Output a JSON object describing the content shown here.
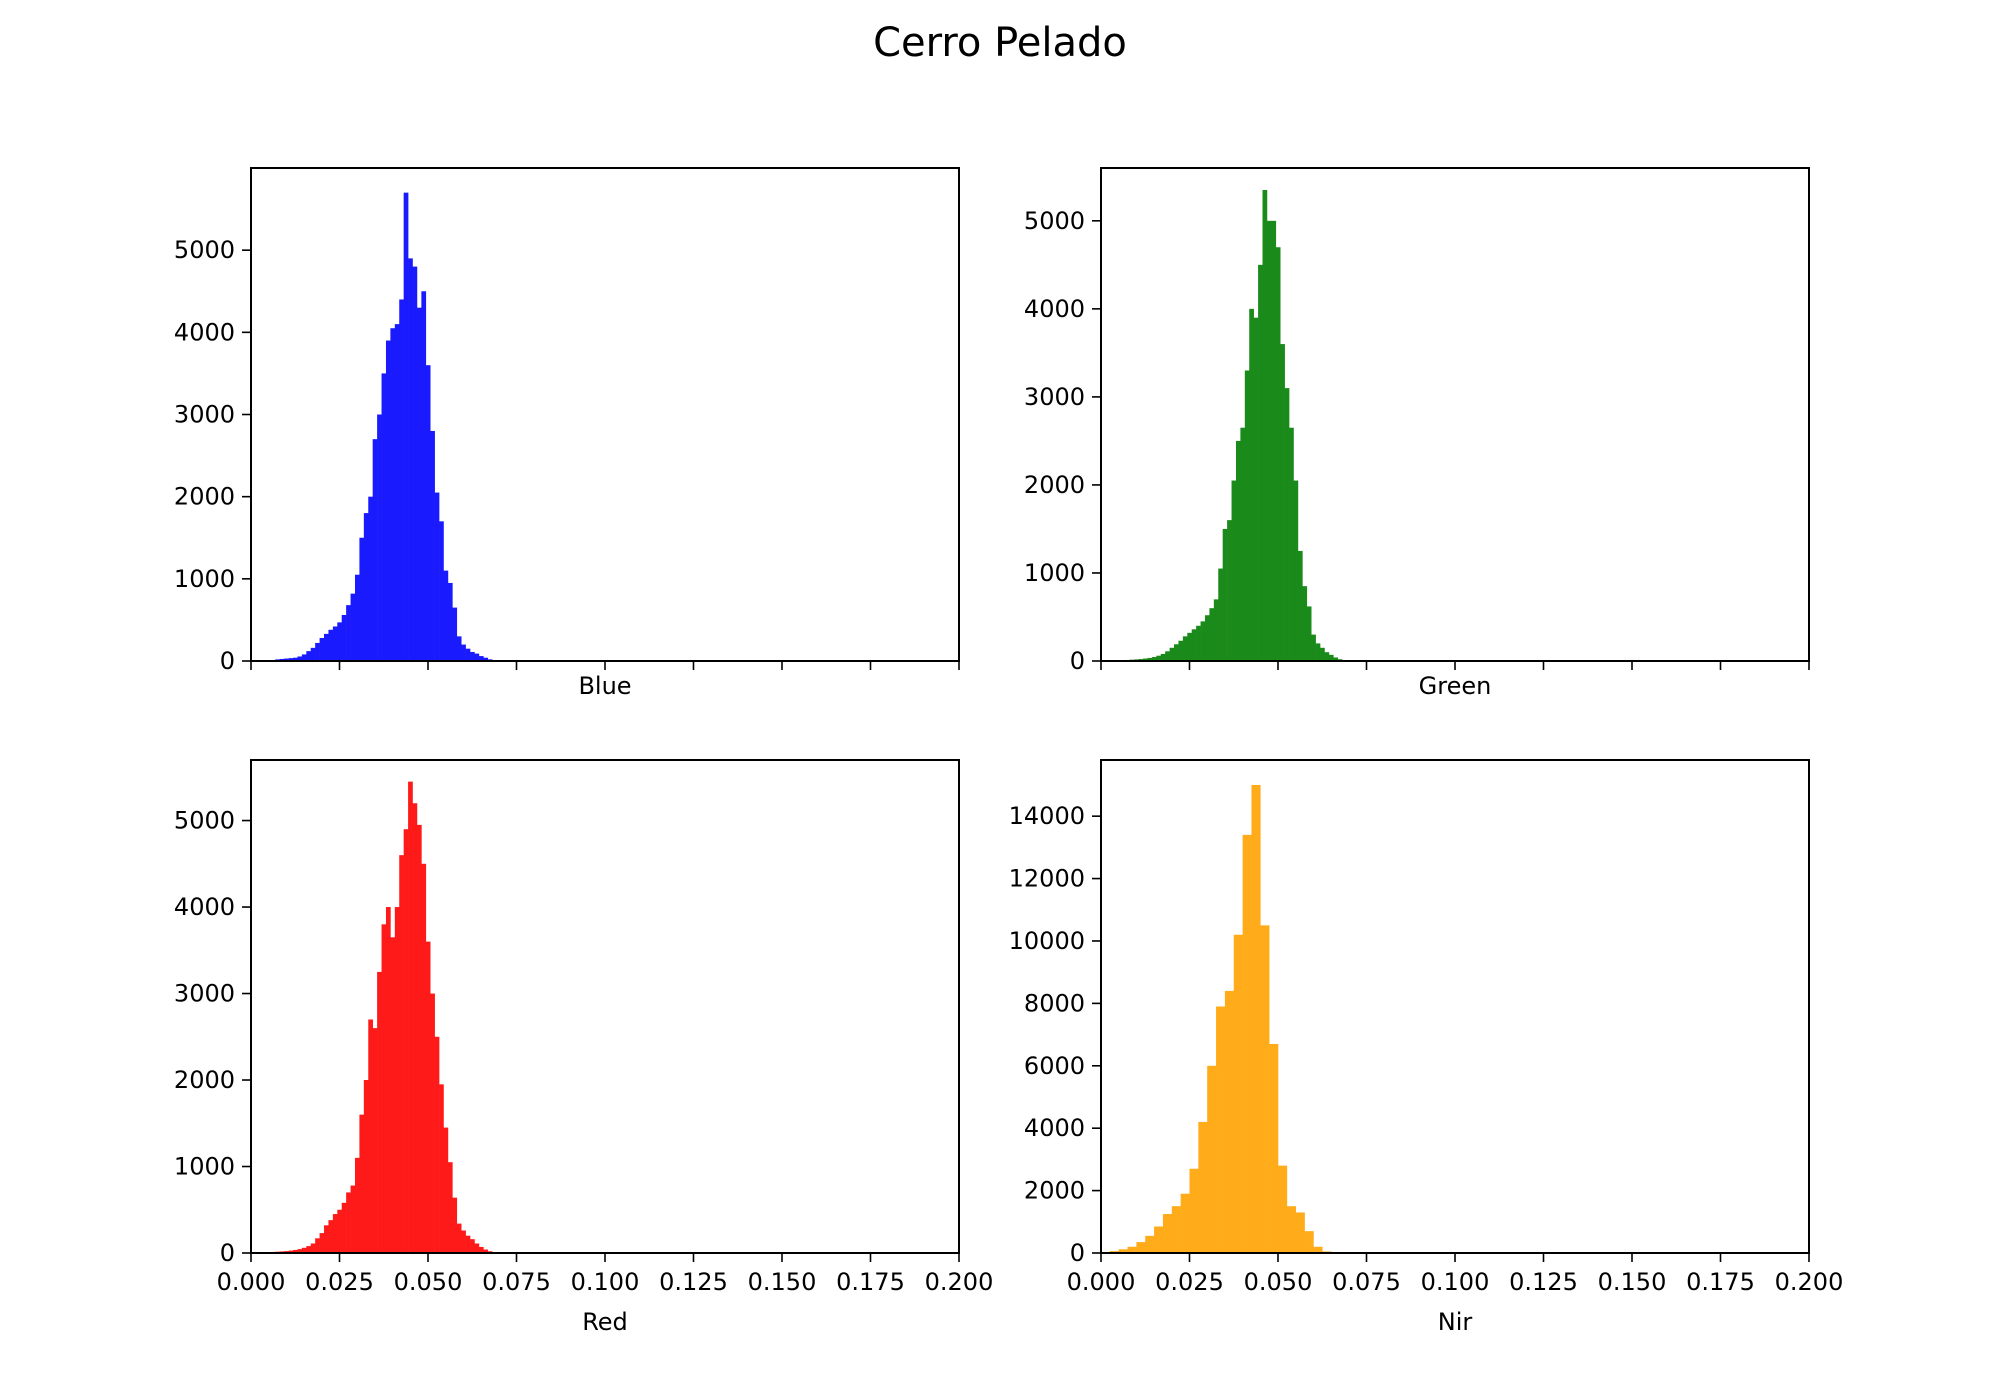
{
  "figure": {
    "title": "Cerro Pelado"
  },
  "chart_data": [
    {
      "type": "bar",
      "panel": "top-left",
      "title": "",
      "xlabel": "Blue",
      "ylabel": "",
      "color": "#1a1aff",
      "xlim": [
        0.0,
        0.2
      ],
      "ylim": [
        0,
        6000
      ],
      "xticks": [
        "",
        "",
        "",
        "",
        "",
        "",
        "",
        "",
        ""
      ],
      "yticks": [
        "0",
        "1000",
        "2000",
        "3000",
        "4000",
        "5000"
      ],
      "grid": false,
      "bin_width": 0.00125,
      "x": [
        0.0075,
        0.00875,
        0.01,
        0.01125,
        0.0125,
        0.01375,
        0.015,
        0.01625,
        0.0175,
        0.01875,
        0.02,
        0.02125,
        0.0225,
        0.02375,
        0.025,
        0.02625,
        0.0275,
        0.02875,
        0.03,
        0.03125,
        0.0325,
        0.03375,
        0.035,
        0.03625,
        0.0375,
        0.03875,
        0.04,
        0.04125,
        0.0425,
        0.04375,
        0.045,
        0.04625,
        0.0475,
        0.04875,
        0.05,
        0.05125,
        0.0525,
        0.05375,
        0.055,
        0.05625,
        0.0575,
        0.05875,
        0.06,
        0.06125,
        0.0625,
        0.06375,
        0.065,
        0.06625,
        0.0675,
        0.06875
      ],
      "values": [
        20,
        25,
        30,
        35,
        40,
        55,
        80,
        120,
        160,
        220,
        280,
        330,
        380,
        420,
        470,
        560,
        680,
        820,
        1050,
        1500,
        1800,
        2000,
        2700,
        3000,
        3500,
        3900,
        4050,
        4100,
        4400,
        5700,
        4900,
        4800,
        4300,
        4500,
        3600,
        2800,
        2050,
        1700,
        1100,
        950,
        650,
        300,
        200,
        150,
        110,
        90,
        60,
        40,
        20,
        10
      ]
    },
    {
      "type": "bar",
      "panel": "top-right",
      "title": "",
      "xlabel": "Green",
      "ylabel": "",
      "color": "#1a8a1a",
      "xlim": [
        0.0,
        0.2
      ],
      "ylim": [
        0,
        5600
      ],
      "xticks": [
        "",
        "",
        "",
        "",
        "",
        "",
        "",
        "",
        ""
      ],
      "yticks": [
        "0",
        "1000",
        "2000",
        "3000",
        "4000",
        "5000"
      ],
      "grid": false,
      "bin_width": 0.00125,
      "x": [
        0.00625,
        0.0075,
        0.00875,
        0.01,
        0.01125,
        0.0125,
        0.01375,
        0.015,
        0.01625,
        0.0175,
        0.01875,
        0.02,
        0.02125,
        0.0225,
        0.02375,
        0.025,
        0.02625,
        0.0275,
        0.02875,
        0.03,
        0.03125,
        0.0325,
        0.03375,
        0.035,
        0.03625,
        0.0375,
        0.03875,
        0.04,
        0.04125,
        0.0425,
        0.04375,
        0.045,
        0.04625,
        0.0475,
        0.04875,
        0.05,
        0.05125,
        0.0525,
        0.05375,
        0.055,
        0.05625,
        0.0575,
        0.05875,
        0.06,
        0.06125,
        0.0625,
        0.06375,
        0.065,
        0.06625,
        0.0675
      ],
      "values": [
        10,
        12,
        15,
        18,
        22,
        28,
        35,
        45,
        60,
        80,
        110,
        150,
        190,
        230,
        280,
        320,
        360,
        400,
        450,
        520,
        600,
        700,
        1050,
        1500,
        1600,
        2050,
        2500,
        2650,
        3300,
        4000,
        3900,
        4500,
        5350,
        5000,
        5000,
        4700,
        3600,
        3100,
        2650,
        2050,
        1250,
        850,
        620,
        300,
        200,
        150,
        100,
        70,
        40,
        20
      ]
    },
    {
      "type": "bar",
      "panel": "bottom-left",
      "title": "",
      "xlabel": "Red",
      "ylabel": "",
      "color": "#ff1a1a",
      "xlim": [
        0.0,
        0.2
      ],
      "ylim": [
        0,
        5700
      ],
      "xticks": [
        "0.000",
        "0.025",
        "0.050",
        "0.075",
        "0.100",
        "0.125",
        "0.150",
        "0.175",
        "0.200"
      ],
      "yticks": [
        "0",
        "1000",
        "2000",
        "3000",
        "4000",
        "5000"
      ],
      "grid": false,
      "bin_width": 0.00125,
      "x": [
        0.005,
        0.00625,
        0.0075,
        0.00875,
        0.01,
        0.01125,
        0.0125,
        0.01375,
        0.015,
        0.01625,
        0.0175,
        0.01875,
        0.02,
        0.02125,
        0.0225,
        0.02375,
        0.025,
        0.02625,
        0.0275,
        0.02875,
        0.03,
        0.03125,
        0.0325,
        0.03375,
        0.035,
        0.03625,
        0.0375,
        0.03875,
        0.04,
        0.04125,
        0.0425,
        0.04375,
        0.045,
        0.04625,
        0.0475,
        0.04875,
        0.05,
        0.05125,
        0.0525,
        0.05375,
        0.055,
        0.05625,
        0.0575,
        0.05875,
        0.06,
        0.06125,
        0.0625,
        0.06375,
        0.065,
        0.06625,
        0.0675
      ],
      "values": [
        10,
        12,
        15,
        18,
        22,
        28,
        35,
        45,
        60,
        80,
        110,
        170,
        230,
        320,
        380,
        450,
        500,
        580,
        700,
        780,
        1100,
        1600,
        2000,
        2700,
        2600,
        3250,
        3800,
        4000,
        3650,
        4000,
        4600,
        4900,
        5450,
        5200,
        4950,
        4500,
        3600,
        3000,
        2500,
        1950,
        1450,
        1050,
        640,
        340,
        260,
        200,
        160,
        110,
        70,
        40,
        20
      ]
    },
    {
      "type": "bar",
      "panel": "bottom-right",
      "title": "",
      "xlabel": "Nir",
      "ylabel": "",
      "color": "#ffab1a",
      "xlim": [
        0.0,
        0.2
      ],
      "ylim": [
        0,
        15800
      ],
      "xticks": [
        "0.000",
        "0.025",
        "0.050",
        "0.075",
        "0.100",
        "0.125",
        "0.150",
        "0.175",
        "0.200"
      ],
      "yticks": [
        "0",
        "2000",
        "4000",
        "6000",
        "8000",
        "10000",
        "12000",
        "14000"
      ],
      "grid": false,
      "bin_width": 0.0025,
      "x": [
        0.00125,
        0.00375,
        0.00625,
        0.00875,
        0.01125,
        0.01375,
        0.01625,
        0.01875,
        0.02125,
        0.02375,
        0.02625,
        0.02875,
        0.03125,
        0.03375,
        0.03625,
        0.03875,
        0.04125,
        0.04375,
        0.04625,
        0.04875,
        0.05125,
        0.05375,
        0.05625,
        0.05875,
        0.06125,
        0.06375
      ],
      "values": [
        30,
        60,
        120,
        200,
        350,
        550,
        850,
        1250,
        1500,
        1900,
        2700,
        4200,
        6000,
        7900,
        8400,
        10200,
        13400,
        15000,
        10500,
        6700,
        2800,
        1500,
        1300,
        700,
        200,
        50
      ]
    }
  ]
}
